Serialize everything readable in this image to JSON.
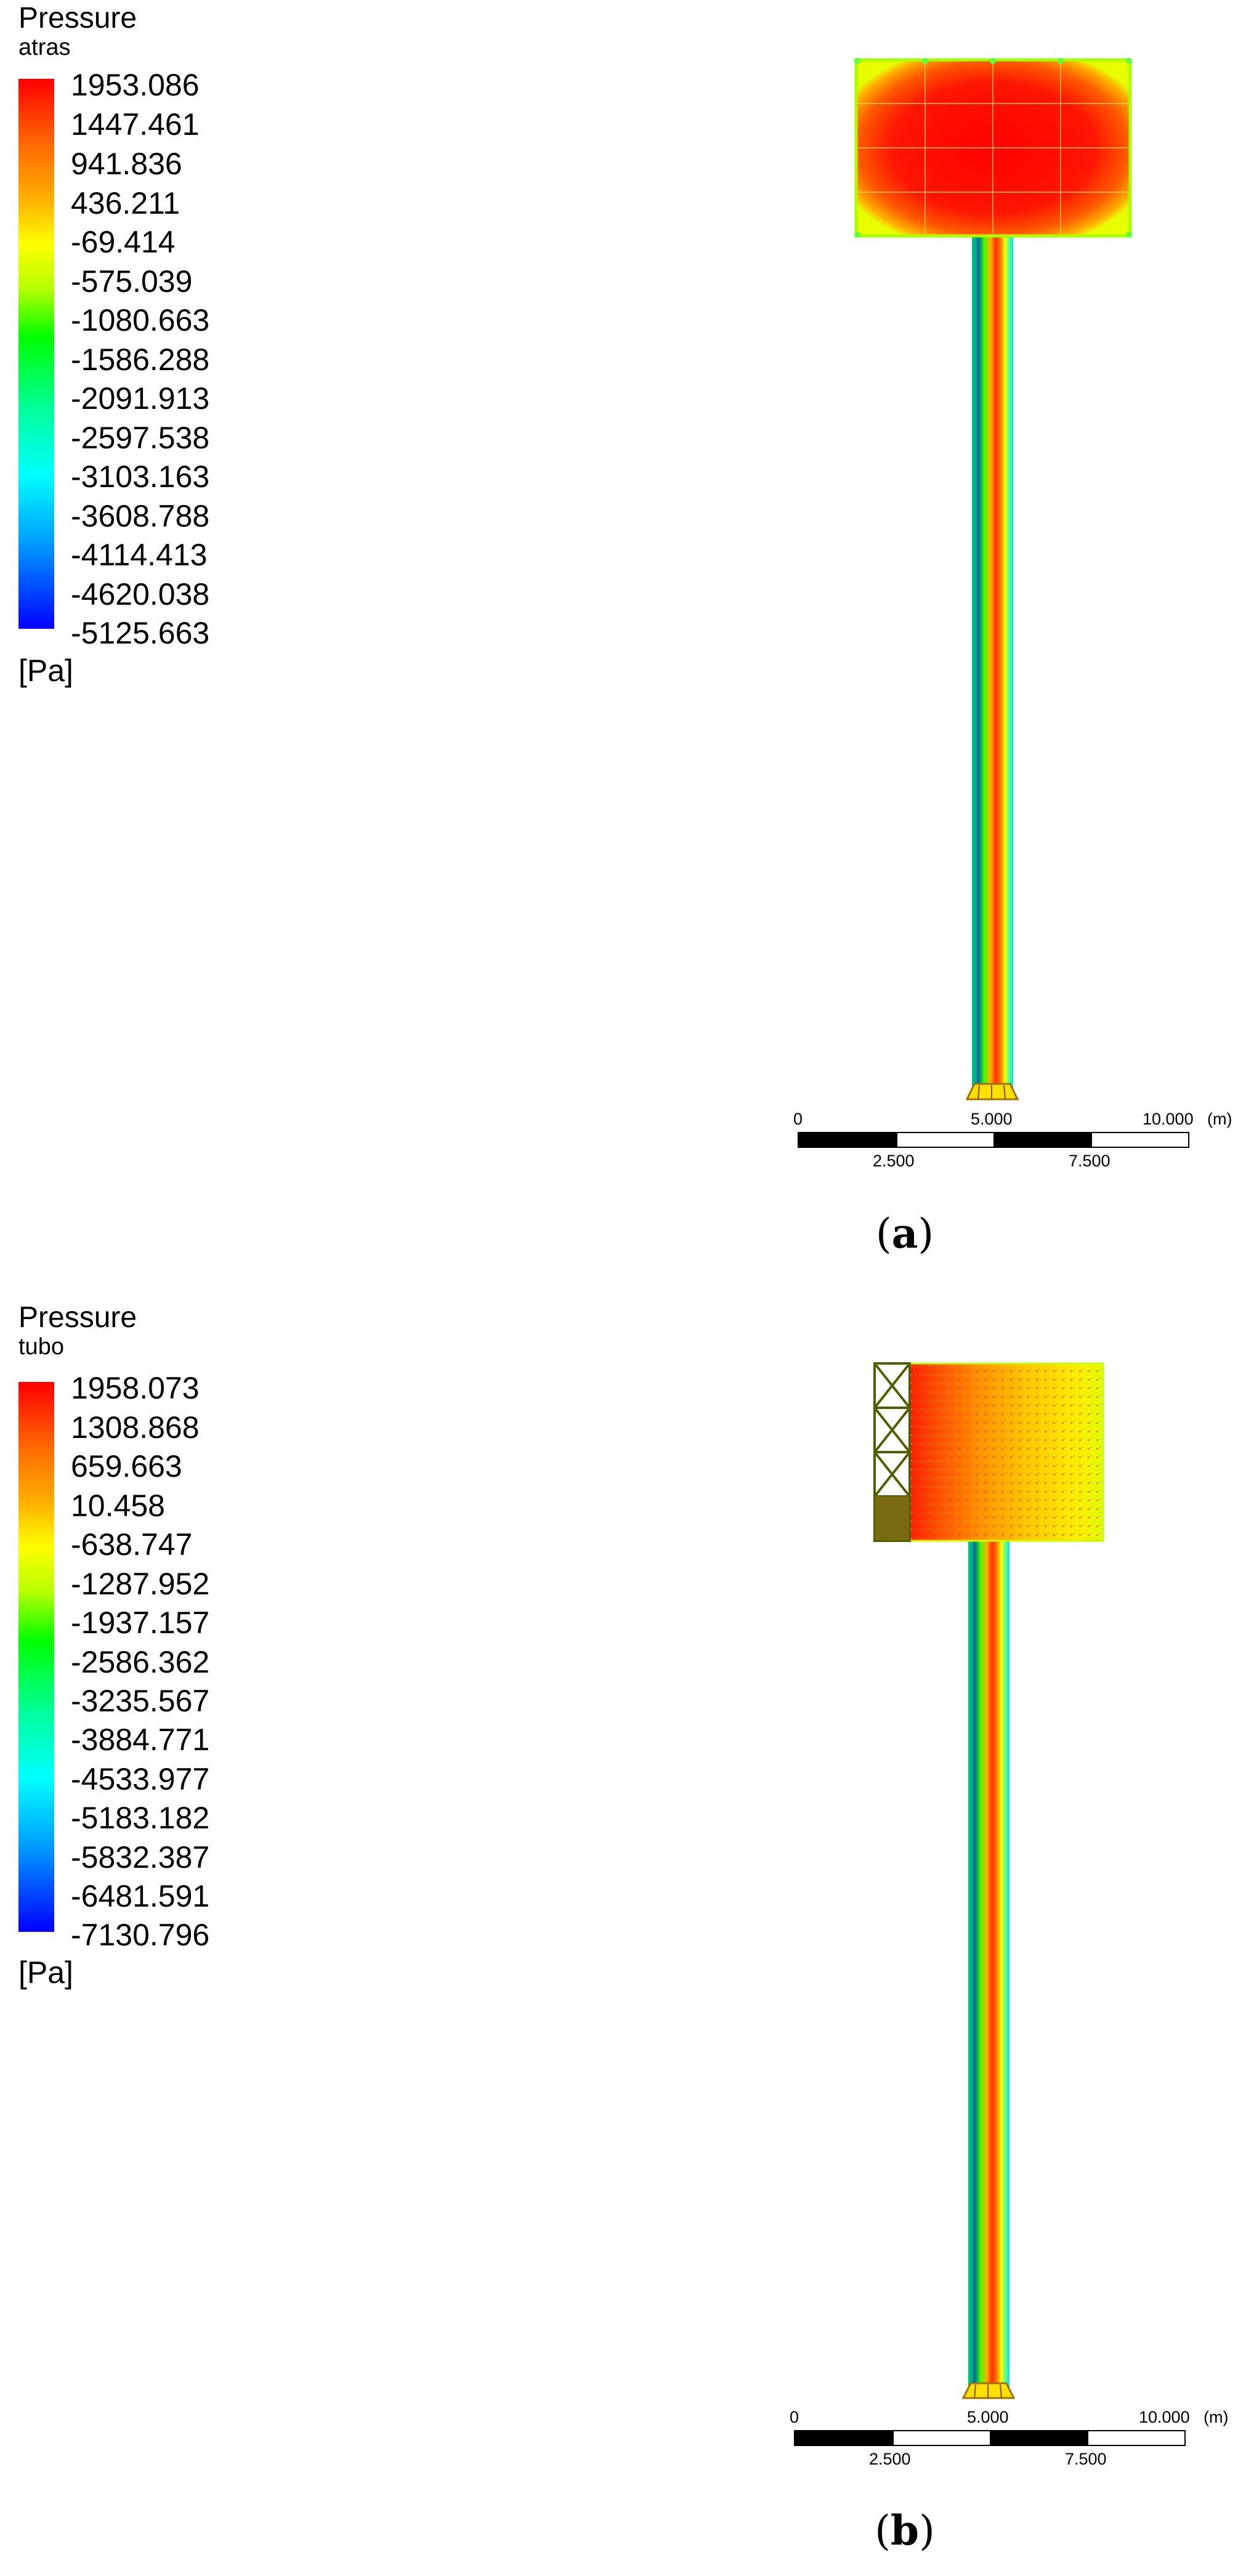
{
  "panels": [
    {
      "id": "a",
      "label": "a",
      "legend": {
        "title": "Pressure",
        "subtitle": "atras",
        "unit": "[Pa]",
        "ticks": [
          "1953.086",
          "1447.461",
          "941.836",
          "436.211",
          "-69.414",
          "-575.039",
          "-1080.663",
          "-1586.288",
          "-2091.913",
          "-2597.538",
          "-3103.163",
          "-3608.788",
          "-4114.413",
          "-4620.038",
          "-5125.663"
        ]
      },
      "scale_bar": {
        "top_labels": [
          "0",
          "5.000",
          "10.000"
        ],
        "bottom_labels": [
          "2.500",
          "7.500"
        ],
        "unit": "(m)"
      }
    },
    {
      "id": "b",
      "label": "b",
      "legend": {
        "title": "Pressure",
        "subtitle": "tubo",
        "unit": "[Pa]",
        "ticks": [
          "1958.073",
          "1308.868",
          "659.663",
          "10.458",
          "-638.747",
          "-1287.952",
          "-1937.157",
          "-2586.362",
          "-3235.567",
          "-3884.771",
          "-4533.977",
          "-5183.182",
          "-5832.387",
          "-6481.591",
          "-7130.796"
        ]
      },
      "scale_bar": {
        "top_labels": [
          "0",
          "5.000",
          "10.000"
        ],
        "bottom_labels": [
          "2.500",
          "7.500"
        ],
        "unit": "(m)"
      }
    }
  ],
  "colormap": [
    "#ff0000",
    "#ff6a00",
    "#ffb000",
    "#ffff00",
    "#b8ff00",
    "#00ff00",
    "#00ffb0",
    "#00ffff",
    "#00a0ff",
    "#0000ff"
  ]
}
